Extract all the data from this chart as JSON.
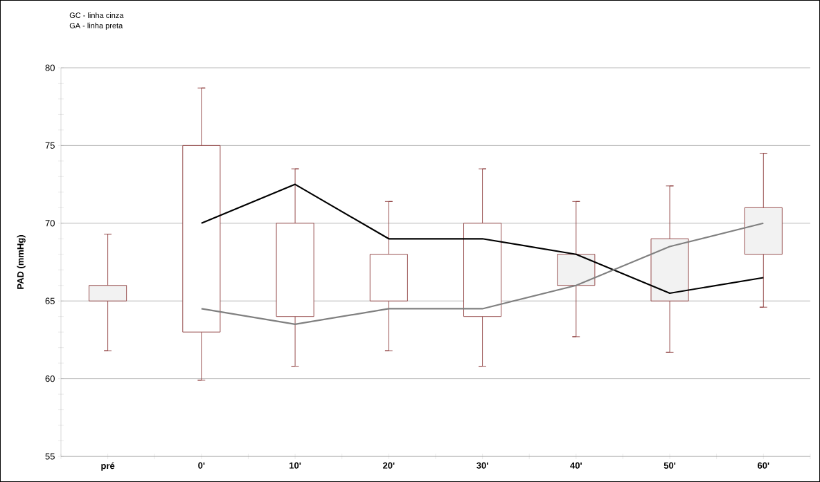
{
  "chart_data": {
    "type": "candlestick",
    "ylabel": "PAD (mmHg)",
    "categories": [
      "pré",
      "0'",
      "10'",
      "20'",
      "30'",
      "40'",
      "50'",
      "60'"
    ],
    "ohlc": [
      [
        66,
        69.3,
        61.8,
        65
      ],
      [
        63,
        78.7,
        59.9,
        75
      ],
      [
        64,
        73.5,
        60.8,
        70
      ],
      [
        65,
        71.4,
        61.8,
        68
      ],
      [
        64,
        73.5,
        60.8,
        70
      ],
      [
        68,
        71.4,
        62.7,
        66
      ],
      [
        69,
        72.4,
        61.7,
        65
      ],
      [
        71,
        74.5,
        64.6,
        68
      ]
    ],
    "color": "#8b3a3a",
    "series": [
      {
        "type": "line",
        "color": "#000000",
        "values": [
          null,
          70,
          72.5,
          69,
          69,
          68,
          65.5,
          66.5
        ]
      },
      {
        "type": "line",
        "color": "#808080",
        "values": [
          null,
          64.5,
          63.5,
          64.5,
          64.5,
          66,
          68.5,
          70
        ]
      }
    ],
    "ylim": [
      55,
      80
    ],
    "yticks": [
      55,
      60,
      65,
      70,
      75,
      80
    ],
    "grid": "y",
    "annotations": [
      "GC - linha cinza",
      "GA - linha preta"
    ]
  }
}
